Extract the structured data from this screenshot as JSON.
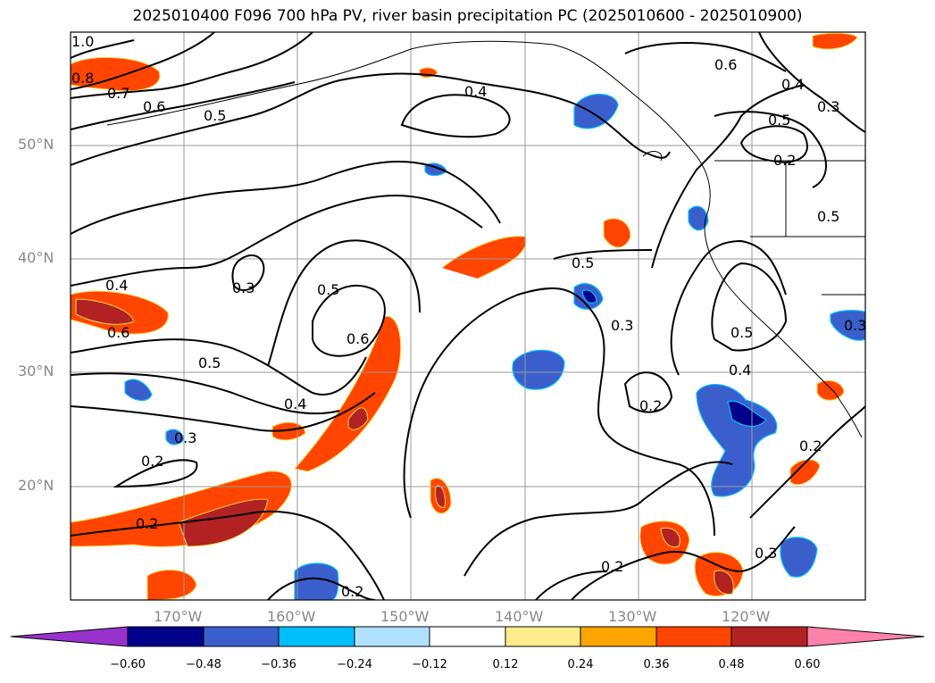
{
  "title": "2025010400 F096 700 hPa PV, river basin precipitation PC (2025010600 - 2025010900)",
  "lat_labels": [
    "50°N",
    "40°N",
    "30°N",
    "20°N"
  ],
  "lon_labels": [
    "170°W",
    "160°W",
    "150°W",
    "140°W",
    "130°W",
    "120°W"
  ],
  "contour_labels": [
    "1.0",
    "0.8",
    "0.7",
    "0.6",
    "0.5",
    "0.4",
    "0.6",
    "0.5",
    "0.4",
    "0.3",
    "0.3",
    "0.5",
    "0.6",
    "0.4",
    "0.6",
    "0.5",
    "0.4",
    "0.3",
    "0.2",
    "0.2",
    "0.2",
    "0.5",
    "0.3",
    "0.2",
    "0.5",
    "0.4",
    "0.5",
    "0.3",
    "0.2",
    "0.3",
    "0.2",
    "0.2"
  ],
  "colorbar": {
    "ticks": [
      "−0.60",
      "−0.48",
      "−0.36",
      "−0.24",
      "−0.12",
      "0.12",
      "0.24",
      "0.36",
      "0.48",
      "0.60"
    ],
    "colors": [
      "#9932cc",
      "#00008b",
      "#3a5fcd",
      "#00bfff",
      "#b0e2ff",
      "#ffffff",
      "#ffec8b",
      "#ffa500",
      "#ff4500",
      "#b22222",
      "#ff82ab"
    ]
  }
}
